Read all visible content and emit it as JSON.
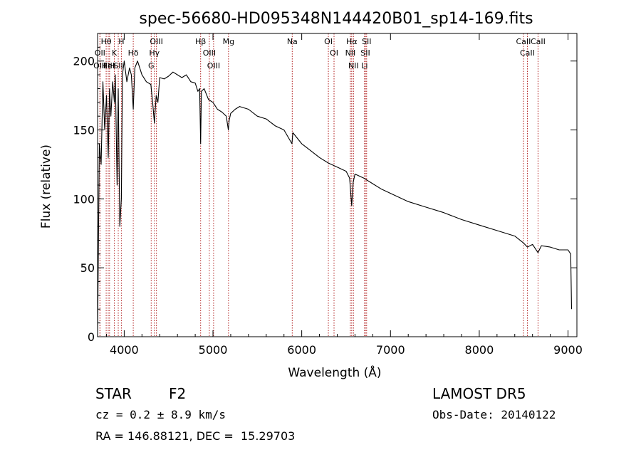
{
  "chart_data": {
    "type": "line",
    "title": "spec-56680-HD095348N144420B01_sp14-169.fits",
    "xlabel": "Wavelength (Å)",
    "ylabel": "Flux (relative)",
    "xlim": [
      3700,
      9100
    ],
    "ylim": [
      0,
      220
    ],
    "x_ticks": [
      4000,
      5000,
      6000,
      7000,
      8000,
      9000
    ],
    "y_ticks": [
      0,
      50,
      100,
      150,
      200
    ],
    "grid": false,
    "legend": "none",
    "line_color": "#000000",
    "marker_color": "#b22222",
    "series": [
      {
        "x": [
          3700,
          3720,
          3740,
          3760,
          3780,
          3800,
          3820,
          3835,
          3850,
          3870,
          3889,
          3900,
          3920,
          3933,
          3950,
          3968,
          3980,
          4000,
          4030,
          4060,
          4080,
          4102,
          4120,
          4150,
          4200,
          4250,
          4300,
          4320,
          4340,
          4360,
          4380,
          4400,
          4450,
          4500,
          4550,
          4600,
          4650,
          4700,
          4750,
          4800,
          4830,
          4850,
          4861,
          4870,
          4900,
          4950,
          5000,
          5050,
          5100,
          5150,
          5173,
          5183,
          5200,
          5250,
          5300,
          5400,
          5500,
          5600,
          5700,
          5800,
          5890,
          5900,
          6000,
          6100,
          6200,
          6300,
          6400,
          6500,
          6540,
          6563,
          6580,
          6600,
          6700,
          6800,
          6900,
          7000,
          7200,
          7400,
          7600,
          7800,
          8000,
          8200,
          8400,
          8498,
          8542,
          8600,
          8662,
          8700,
          8800,
          8900,
          9000,
          9030,
          9040
        ],
        "y": [
          0,
          140,
          125,
          185,
          150,
          175,
          130,
          180,
          160,
          185,
          170,
          190,
          110,
          180,
          80,
          100,
          190,
          200,
          185,
          195,
          190,
          165,
          195,
          200,
          190,
          185,
          183,
          170,
          155,
          175,
          170,
          188,
          187,
          189,
          192,
          190,
          188,
          190,
          185,
          184,
          178,
          180,
          140,
          178,
          180,
          172,
          170,
          165,
          163,
          160,
          150,
          157,
          162,
          165,
          167,
          165,
          160,
          158,
          153,
          150,
          140,
          148,
          140,
          135,
          130,
          126,
          123,
          120,
          115,
          95,
          112,
          118,
          115,
          111,
          107,
          104,
          98,
          94,
          90,
          85,
          81,
          77,
          73,
          68,
          65,
          67,
          61,
          66,
          65,
          63,
          63,
          60,
          20
        ]
      }
    ],
    "annotations": [
      {
        "label": "Hθ",
        "x": 3797
      },
      {
        "label": "OII",
        "x": 3727
      },
      {
        "label": "OIII",
        "x": 3727
      },
      {
        "label": "HeI",
        "x": 3820
      },
      {
        "label": "FIH",
        "x": 3835
      },
      {
        "label": "K",
        "x": 3889
      },
      {
        "label": "SII",
        "x": 3933
      },
      {
        "label": "H",
        "x": 3968
      },
      {
        "label": "Hδ",
        "x": 4102
      },
      {
        "label": "OIII",
        "x": 4363
      },
      {
        "label": "Hγ",
        "x": 4340
      },
      {
        "label": "G",
        "x": 4304
      },
      {
        "label": "Hβ",
        "x": 4861
      },
      {
        "label": "OIII",
        "x": 4959
      },
      {
        "label": "OIII",
        "x": 5007
      },
      {
        "label": "Mg",
        "x": 5175
      },
      {
        "label": "Na",
        "x": 5893
      },
      {
        "label": "OI",
        "x": 6300
      },
      {
        "label": "OI",
        "x": 6364
      },
      {
        "label": "Hα",
        "x": 6563
      },
      {
        "label": "NII",
        "x": 6548
      },
      {
        "label": "NII",
        "x": 6583
      },
      {
        "label": "SII",
        "x": 6717
      },
      {
        "label": "SII",
        "x": 6731
      },
      {
        "label": "Li",
        "x": 6708
      },
      {
        "label": "CaII",
        "x": 8498
      },
      {
        "label": "CaII",
        "x": 8542
      },
      {
        "label": "CaII",
        "x": 8662
      }
    ]
  },
  "info": {
    "class": "STAR",
    "subclass": "F2",
    "survey": "LAMOST DR5",
    "cz": "cz = 0.2 ± 8.9 km/s",
    "obs_date": "Obs-Date: 20140122",
    "coords": "RA = 146.88121, DEC =  15.29703"
  }
}
